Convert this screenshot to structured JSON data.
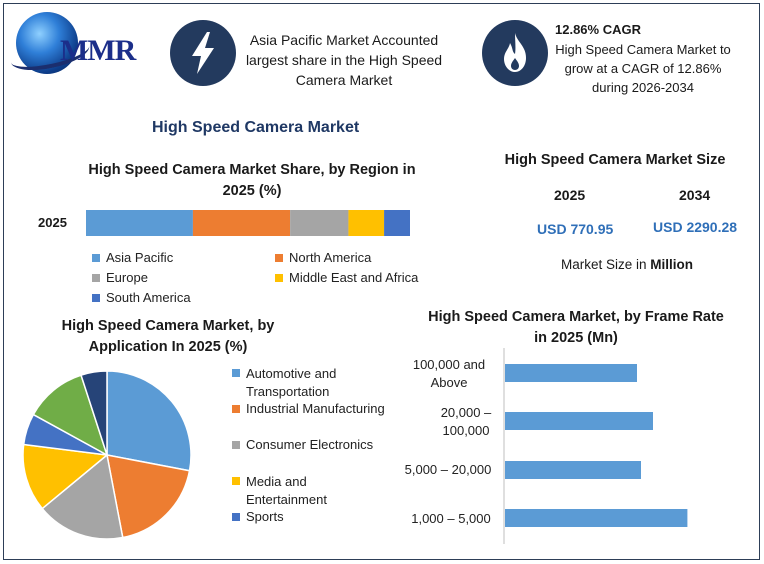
{
  "header": {
    "logo_text": "MMR",
    "box1_text": "Asia Pacific Market Accounted largest share in the High Speed Camera Market",
    "cagr_title": "12.86% CAGR",
    "cagr_text": "High Speed Camera Market to grow at a CAGR of 12.86% during 2026-2034",
    "icon1": "lightning-icon",
    "icon2": "flame-icon"
  },
  "main_title": "High Speed Camera Market",
  "market_size": {
    "title": "High Speed Camera Market Size",
    "year1": "2025",
    "year2": "2034",
    "value1": "USD 770.95",
    "value2": "USD 2290.28",
    "unit_note_prefix": "Market Size in ",
    "unit_note_bold": "Million"
  },
  "colors": {
    "blue": "#5b9bd5",
    "orange": "#ed7d31",
    "gray": "#a5a5a5",
    "yellow": "#ffc000",
    "dark_blue": "#4472c4",
    "green": "#70ad47",
    "navy": "#264478"
  },
  "chart_data": [
    {
      "type": "bar",
      "orientation": "horizontal-stacked",
      "title": "High Speed Camera Market Share, by Region in 2025 (%)",
      "categories": [
        "2025"
      ],
      "series": [
        {
          "name": "Asia Pacific",
          "values": [
            33
          ],
          "color": "#5b9bd5"
        },
        {
          "name": "North America",
          "values": [
            30
          ],
          "color": "#ed7d31"
        },
        {
          "name": "Europe",
          "values": [
            18
          ],
          "color": "#a5a5a5"
        },
        {
          "name": "Middle East and Africa",
          "values": [
            11
          ],
          "color": "#ffc000"
        },
        {
          "name": "South America",
          "values": [
            8
          ],
          "color": "#4472c4"
        }
      ],
      "legend": "bottom"
    },
    {
      "type": "pie",
      "title": "High Speed Camera Market, by Application In 2025 (%)",
      "labels": [
        "Automotive and Transportation",
        "Industrial Manufacturing",
        "Consumer Electronics",
        "Media and Entertainment",
        "Sports"
      ],
      "values": [
        28,
        19,
        17,
        13,
        6
      ],
      "extra_values": [
        12,
        5
      ],
      "colors": [
        "#5b9bd5",
        "#ed7d31",
        "#a5a5a5",
        "#ffc000",
        "#4472c4",
        "#70ad47",
        "#264478"
      ],
      "legend": "right"
    },
    {
      "type": "bar",
      "orientation": "horizontal",
      "title": "High Speed Camera Market, by Frame Rate in 2025 (Mn)",
      "categories": [
        "100,000 and Above",
        "20,000 – 100,000",
        "5,000 – 20,000",
        "1,000 – 5,000"
      ],
      "values": [
        165,
        185,
        170,
        228
      ],
      "xlim": [
        0,
        300
      ]
    }
  ]
}
